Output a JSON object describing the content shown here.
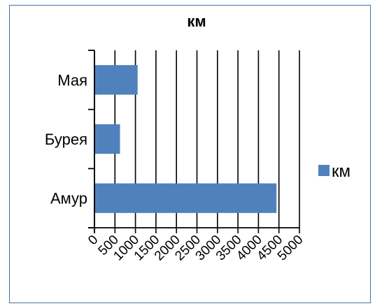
{
  "chart_data": {
    "type": "bar",
    "orientation": "horizontal",
    "title": "км",
    "xlabel": "",
    "ylabel": "",
    "categories": [
      "Амур",
      "Бурея",
      "Мая"
    ],
    "series": [
      {
        "name": "км",
        "values": [
          4440,
          623,
          1053
        ],
        "color": "#4f81bd"
      }
    ],
    "xlim": [
      0,
      5000
    ],
    "xticks": [
      "0",
      "500",
      "1000",
      "1500",
      "2000",
      "2500",
      "3000",
      "3500",
      "4000",
      "4500",
      "5000"
    ],
    "grid": true,
    "legend": "right"
  }
}
